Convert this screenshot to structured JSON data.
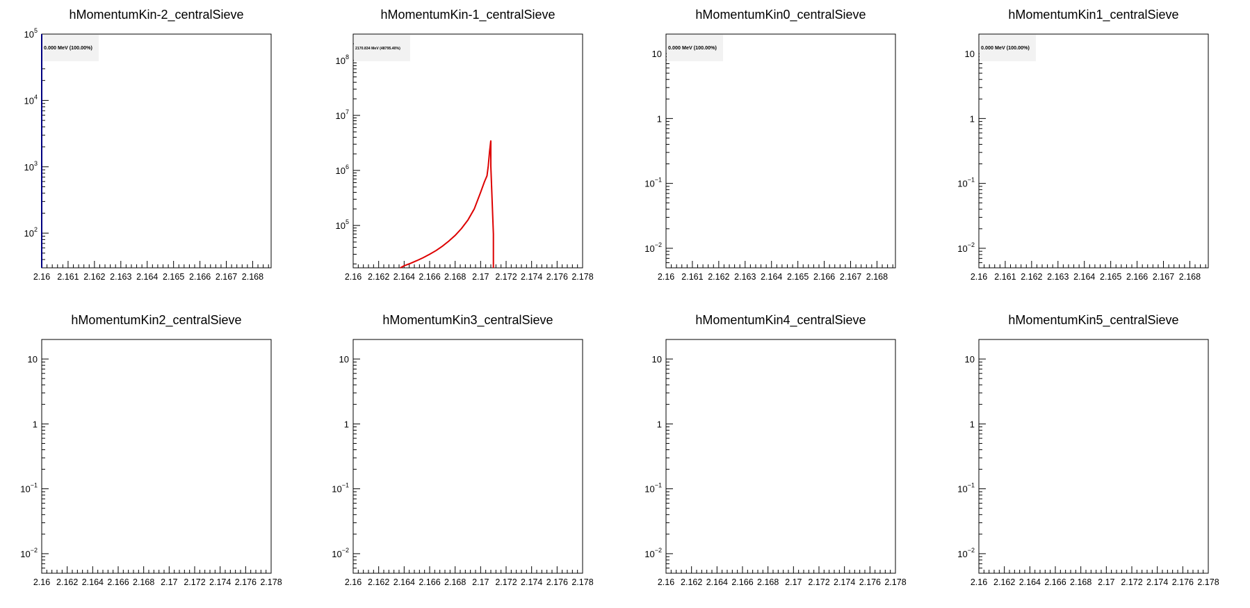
{
  "chart_data": [
    {
      "type": "line",
      "title": "hMomentumKin-2_centralSieve",
      "stats_label": "0.000 MeV (100.00%)",
      "ylog": true,
      "xlim": [
        2.16,
        2.1687
      ],
      "ylim": [
        30,
        100000
      ],
      "x_ticks": [
        "2.16",
        "2.161",
        "2.162",
        "2.163",
        "2.164",
        "2.165",
        "2.166",
        "2.167",
        "2.168"
      ],
      "y_ticks": [
        {
          "v": 100,
          "base": "10",
          "exp": "2"
        },
        {
          "v": 1000,
          "base": "10",
          "exp": "3"
        },
        {
          "v": 10000,
          "base": "10",
          "exp": "4"
        },
        {
          "v": 100000,
          "base": "10",
          "exp": "5"
        }
      ],
      "line_color": "#000080",
      "x": [
        2.16,
        2.16
      ],
      "y": [
        30,
        100000
      ]
    },
    {
      "type": "line",
      "title": "hMomentumKin-1_centralSieve",
      "stats_label": "2170.834 MeV (48795.40%)",
      "ylog": true,
      "xlim": [
        2.16,
        2.178
      ],
      "ylim": [
        17000,
        300000000
      ],
      "x_ticks": [
        "2.16",
        "2.162",
        "2.164",
        "2.166",
        "2.168",
        "2.17",
        "2.172",
        "2.174",
        "2.176",
        "2.178"
      ],
      "y_ticks": [
        {
          "v": 100000,
          "base": "10",
          "exp": "5"
        },
        {
          "v": 1000000,
          "base": "10",
          "exp": "6"
        },
        {
          "v": 10000000,
          "base": "10",
          "exp": "7"
        },
        {
          "v": 100000000,
          "base": "10",
          "exp": "8"
        }
      ],
      "line_color": "#dd0000",
      "x": [
        2.1637,
        2.164,
        2.1645,
        2.165,
        2.1655,
        2.166,
        2.1665,
        2.167,
        2.1675,
        2.168,
        2.1685,
        2.169,
        2.1695,
        2.17,
        2.1703,
        2.1705,
        2.1706,
        2.1707,
        2.1708,
        2.1708,
        2.171,
        2.171
      ],
      "y": [
        17000,
        18500,
        20500,
        23000,
        26000,
        30000,
        35000,
        42000,
        52000,
        66000,
        88000,
        125000,
        200000,
        400000,
        620000,
        800000,
        1200000,
        2200000,
        3500000,
        1200000,
        70000,
        17000
      ]
    },
    {
      "type": "line",
      "title": "hMomentumKin0_centralSieve",
      "stats_label": "0.000 MeV (100.00%)",
      "ylog": true,
      "xlim": [
        2.16,
        2.1687
      ],
      "ylim": [
        0.005,
        20
      ],
      "x_ticks": [
        "2.16",
        "2.161",
        "2.162",
        "2.163",
        "2.164",
        "2.165",
        "2.166",
        "2.167",
        "2.168"
      ],
      "y_ticks": [
        {
          "v": 0.01,
          "base": "10",
          "exp": "−2"
        },
        {
          "v": 0.1,
          "base": "10",
          "exp": "−1"
        },
        {
          "v": 1,
          "base": "1",
          "exp": ""
        },
        {
          "v": 10,
          "base": "10",
          "exp": ""
        }
      ],
      "line_color": "#000080",
      "x": [],
      "y": []
    },
    {
      "type": "line",
      "title": "hMomentumKin1_centralSieve",
      "stats_label": "0.000 MeV (100.00%)",
      "ylog": true,
      "xlim": [
        2.16,
        2.1687
      ],
      "ylim": [
        0.005,
        20
      ],
      "x_ticks": [
        "2.16",
        "2.161",
        "2.162",
        "2.163",
        "2.164",
        "2.165",
        "2.166",
        "2.167",
        "2.168"
      ],
      "y_ticks": [
        {
          "v": 0.01,
          "base": "10",
          "exp": "−2"
        },
        {
          "v": 0.1,
          "base": "10",
          "exp": "−1"
        },
        {
          "v": 1,
          "base": "1",
          "exp": ""
        },
        {
          "v": 10,
          "base": "10",
          "exp": ""
        }
      ],
      "line_color": "#000080",
      "x": [],
      "y": []
    },
    {
      "type": "line",
      "title": "hMomentumKin2_centralSieve",
      "stats_label": "",
      "ylog": true,
      "xlim": [
        2.16,
        2.178
      ],
      "ylim": [
        0.005,
        20
      ],
      "x_ticks": [
        "2.16",
        "2.162",
        "2.164",
        "2.166",
        "2.168",
        "2.17",
        "2.172",
        "2.174",
        "2.176",
        "2.178"
      ],
      "y_ticks": [
        {
          "v": 0.01,
          "base": "10",
          "exp": "−2"
        },
        {
          "v": 0.1,
          "base": "10",
          "exp": "−1"
        },
        {
          "v": 1,
          "base": "1",
          "exp": ""
        },
        {
          "v": 10,
          "base": "10",
          "exp": ""
        }
      ],
      "line_color": "#000080",
      "x": [],
      "y": []
    },
    {
      "type": "line",
      "title": "hMomentumKin3_centralSieve",
      "stats_label": "",
      "ylog": true,
      "xlim": [
        2.16,
        2.178
      ],
      "ylim": [
        0.005,
        20
      ],
      "x_ticks": [
        "2.16",
        "2.162",
        "2.164",
        "2.166",
        "2.168",
        "2.17",
        "2.172",
        "2.174",
        "2.176",
        "2.178"
      ],
      "y_ticks": [
        {
          "v": 0.01,
          "base": "10",
          "exp": "−2"
        },
        {
          "v": 0.1,
          "base": "10",
          "exp": "−1"
        },
        {
          "v": 1,
          "base": "1",
          "exp": ""
        },
        {
          "v": 10,
          "base": "10",
          "exp": ""
        }
      ],
      "line_color": "#000080",
      "x": [],
      "y": []
    },
    {
      "type": "line",
      "title": "hMomentumKin4_centralSieve",
      "stats_label": "",
      "ylog": true,
      "xlim": [
        2.16,
        2.178
      ],
      "ylim": [
        0.005,
        20
      ],
      "x_ticks": [
        "2.16",
        "2.162",
        "2.164",
        "2.166",
        "2.168",
        "2.17",
        "2.172",
        "2.174",
        "2.176",
        "2.178"
      ],
      "y_ticks": [
        {
          "v": 0.01,
          "base": "10",
          "exp": "−2"
        },
        {
          "v": 0.1,
          "base": "10",
          "exp": "−1"
        },
        {
          "v": 1,
          "base": "1",
          "exp": ""
        },
        {
          "v": 10,
          "base": "10",
          "exp": ""
        }
      ],
      "line_color": "#000080",
      "x": [],
      "y": []
    },
    {
      "type": "line",
      "title": "hMomentumKin5_centralSieve",
      "stats_label": "",
      "ylog": true,
      "xlim": [
        2.16,
        2.178
      ],
      "ylim": [
        0.005,
        20
      ],
      "x_ticks": [
        "2.16",
        "2.162",
        "2.164",
        "2.166",
        "2.168",
        "2.17",
        "2.172",
        "2.174",
        "2.176",
        "2.178"
      ],
      "y_ticks": [
        {
          "v": 0.01,
          "base": "10",
          "exp": "−2"
        },
        {
          "v": 0.1,
          "base": "10",
          "exp": "−1"
        },
        {
          "v": 1,
          "base": "1",
          "exp": ""
        },
        {
          "v": 10,
          "base": "10",
          "exp": ""
        }
      ],
      "line_color": "#000080",
      "x": [],
      "y": []
    }
  ]
}
